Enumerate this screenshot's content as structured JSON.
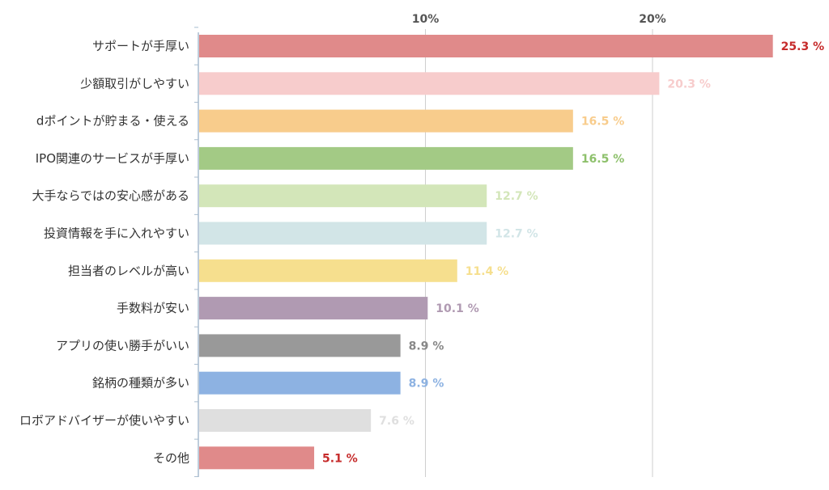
{
  "chart_data": {
    "type": "bar",
    "orientation": "horizontal",
    "title": "",
    "xlabel": "",
    "ylabel": "",
    "xlim": [
      0,
      26
    ],
    "grid": true,
    "x_ticks": [
      {
        "value": 10,
        "label": "10%"
      },
      {
        "value": 20,
        "label": "20%"
      }
    ],
    "categories": [
      "サポートが手厚い",
      "少額取引がしやすい",
      "dポイントが貯まる・使える",
      "IPO関連のサービスが手厚い",
      "大手ならではの安心感がある",
      "投資情報を手に入れやすい",
      "担当者のレベルが高い",
      "手数料が安い",
      "アプリの使い勝手がいい",
      "銘柄の種類が多い",
      "ロボアドバイザーが使いやすい",
      "その他"
    ],
    "values": [
      25.3,
      20.3,
      16.5,
      16.5,
      12.7,
      12.7,
      11.4,
      10.1,
      8.9,
      8.9,
      7.6,
      5.1
    ],
    "value_labels": [
      "25.3 %",
      "20.3 %",
      "16.5 %",
      "16.5 %",
      "12.7 %",
      "12.7 %",
      "11.4 %",
      "10.1 %",
      "8.9 %",
      "8.9 %",
      "7.6 %",
      "5.1 %"
    ],
    "bar_colors": [
      "#e08a8a",
      "#f7cccc",
      "#f8cc8c",
      "#a3ca85",
      "#d3e6b9",
      "#d2e5e7",
      "#f6df8e",
      "#b09ab2",
      "#999999",
      "#8db2e2",
      "#dfdfdf",
      "#e08a8a"
    ],
    "label_colors": [
      "#c62b2b",
      "#f7cccc",
      "#f8cc8c",
      "#8dc06b",
      "#d3e6b9",
      "#d2e5e7",
      "#f6df8e",
      "#b09ab2",
      "#888888",
      "#8db2e2",
      "#dfdfdf",
      "#c62b2b"
    ]
  }
}
